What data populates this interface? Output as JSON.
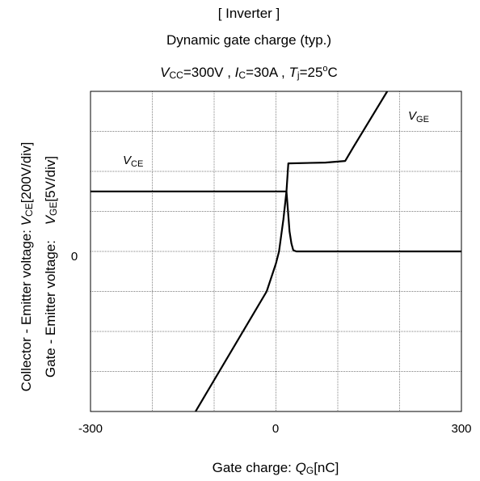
{
  "header": {
    "line1": "[ Inverter ]",
    "line2": "Dynamic gate charge  (typ.)",
    "cond": {
      "vcc_sym": "V",
      "vcc_sub": "CC",
      "vcc_val": "=300V , ",
      "ic_sym": "I",
      "ic_sub": "C",
      "ic_val": "=30A , ",
      "tj_sym": "T",
      "tj_sub": "j",
      "tj_val": "=25",
      "tj_deg": "o",
      "tj_unit": "C"
    }
  },
  "chart_data": {
    "type": "line",
    "x_axis": {
      "label_prefix": "Gate charge: ",
      "label_sym": "Q",
      "label_sub": "G",
      "label_unit": "[nC]",
      "min": -300,
      "max": 300,
      "ticks": [
        "-300",
        "0",
        "300"
      ],
      "tick_values": [
        -300,
        0,
        300
      ]
    },
    "y_axis": {
      "line1_prefix": "Collector - Emitter voltage: ",
      "line1_sym": "V",
      "line1_sub": "CE",
      "line1_unit": "[200V/div]",
      "line2_prefix": "Gate - Emitter voltage: ",
      "line2_sym": "V",
      "line2_sub": "GE",
      "line2_unit": "[5V/div]",
      "min_div": -4,
      "max_div": 4,
      "zero_label": "0"
    },
    "grid": true,
    "series": [
      {
        "label_sym": "V",
        "label_sub": "CE",
        "points_div": [
          [
            -300,
            1.5
          ],
          [
            17,
            1.5
          ],
          [
            20,
            0.9
          ],
          [
            22,
            0.5
          ],
          [
            25,
            0.2
          ],
          [
            28,
            0.03
          ],
          [
            33,
            0
          ],
          [
            300,
            0
          ]
        ]
      },
      {
        "label_sym": "V",
        "label_sub": "GE",
        "points_div": [
          [
            -130,
            -4
          ],
          [
            -15,
            -1
          ],
          [
            0,
            -0.3
          ],
          [
            5,
            0
          ],
          [
            12,
            0.8
          ],
          [
            17,
            1.5
          ],
          [
            20,
            2.2
          ],
          [
            80,
            2.22
          ],
          [
            112,
            2.26
          ],
          [
            125,
            2.6
          ],
          [
            180,
            4.0
          ]
        ]
      }
    ]
  }
}
